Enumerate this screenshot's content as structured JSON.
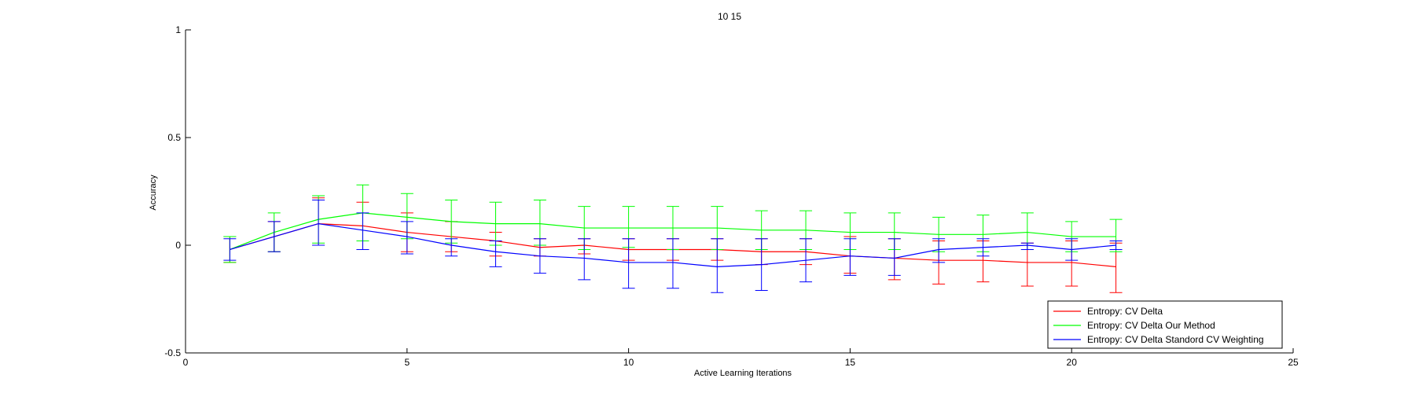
{
  "chart_data": {
    "type": "line",
    "title": "10  15",
    "xlabel": "Active Learning Iterations",
    "ylabel": "Accuracy",
    "xlim": [
      0,
      25
    ],
    "ylim": [
      -0.5,
      1
    ],
    "xticks": [
      "0",
      "5",
      "10",
      "15",
      "20",
      "25"
    ],
    "yticks": [
      "-0.5",
      "0",
      "0.5",
      "1"
    ],
    "grid": false,
    "legend_position": "bottom-right",
    "x": [
      1,
      2,
      3,
      4,
      5,
      6,
      7,
      8,
      9,
      10,
      11,
      12,
      13,
      14,
      15,
      16,
      17,
      18,
      19,
      20,
      21
    ],
    "series": [
      {
        "name": "Entropy: CV Delta",
        "color": "#ff0000",
        "values": [
          -0.02,
          0.04,
          0.1,
          0.09,
          0.06,
          0.04,
          0.02,
          -0.01,
          0.0,
          -0.02,
          -0.02,
          -0.02,
          -0.03,
          -0.03,
          -0.05,
          -0.06,
          -0.07,
          -0.07,
          -0.08,
          -0.08,
          -0.1
        ],
        "err_low": [
          0.06,
          0.07,
          0.1,
          0.11,
          0.09,
          0.07,
          0.07,
          0.04,
          0.04,
          0.05,
          0.05,
          0.05,
          0.06,
          0.06,
          0.08,
          0.1,
          0.11,
          0.1,
          0.11,
          0.11,
          0.12
        ],
        "err_high": [
          0.06,
          0.07,
          0.12,
          0.11,
          0.09,
          0.07,
          0.04,
          0.04,
          0.03,
          0.05,
          0.05,
          0.05,
          0.06,
          0.06,
          0.09,
          0.09,
          0.09,
          0.09,
          0.09,
          0.1,
          0.11
        ]
      },
      {
        "name": "Entropy: CV Delta Our Method",
        "color": "#00ff00",
        "values": [
          -0.02,
          0.06,
          0.12,
          0.15,
          0.13,
          0.11,
          0.1,
          0.1,
          0.08,
          0.08,
          0.08,
          0.08,
          0.07,
          0.07,
          0.06,
          0.06,
          0.05,
          0.05,
          0.06,
          0.04,
          0.04
        ],
        "err_low": [
          0.06,
          0.09,
          0.11,
          0.13,
          0.1,
          0.1,
          0.1,
          0.1,
          0.1,
          0.09,
          0.1,
          0.1,
          0.09,
          0.09,
          0.08,
          0.08,
          0.08,
          0.08,
          0.08,
          0.07,
          0.07
        ],
        "err_high": [
          0.06,
          0.09,
          0.11,
          0.13,
          0.11,
          0.1,
          0.1,
          0.11,
          0.1,
          0.1,
          0.1,
          0.1,
          0.09,
          0.09,
          0.09,
          0.09,
          0.08,
          0.09,
          0.09,
          0.07,
          0.08
        ]
      },
      {
        "name": "Entropy: CV Delta Standord CV Weighting",
        "color": "#0000ff",
        "values": [
          -0.02,
          0.04,
          0.1,
          0.07,
          0.04,
          0.0,
          -0.03,
          -0.05,
          -0.06,
          -0.08,
          -0.08,
          -0.1,
          -0.09,
          -0.07,
          -0.05,
          -0.06,
          -0.02,
          -0.01,
          0.0,
          -0.02,
          0.0
        ],
        "err_low": [
          0.05,
          0.07,
          0.1,
          0.09,
          0.08,
          0.05,
          0.07,
          0.08,
          0.1,
          0.12,
          0.12,
          0.12,
          0.12,
          0.1,
          0.09,
          0.08,
          0.06,
          0.04,
          0.02,
          0.05,
          0.02
        ],
        "err_high": [
          0.05,
          0.07,
          0.11,
          0.08,
          0.07,
          0.03,
          0.05,
          0.08,
          0.09,
          0.11,
          0.11,
          0.13,
          0.12,
          0.1,
          0.08,
          0.09,
          0.05,
          0.04,
          0.01,
          0.05,
          0.02
        ]
      }
    ]
  }
}
